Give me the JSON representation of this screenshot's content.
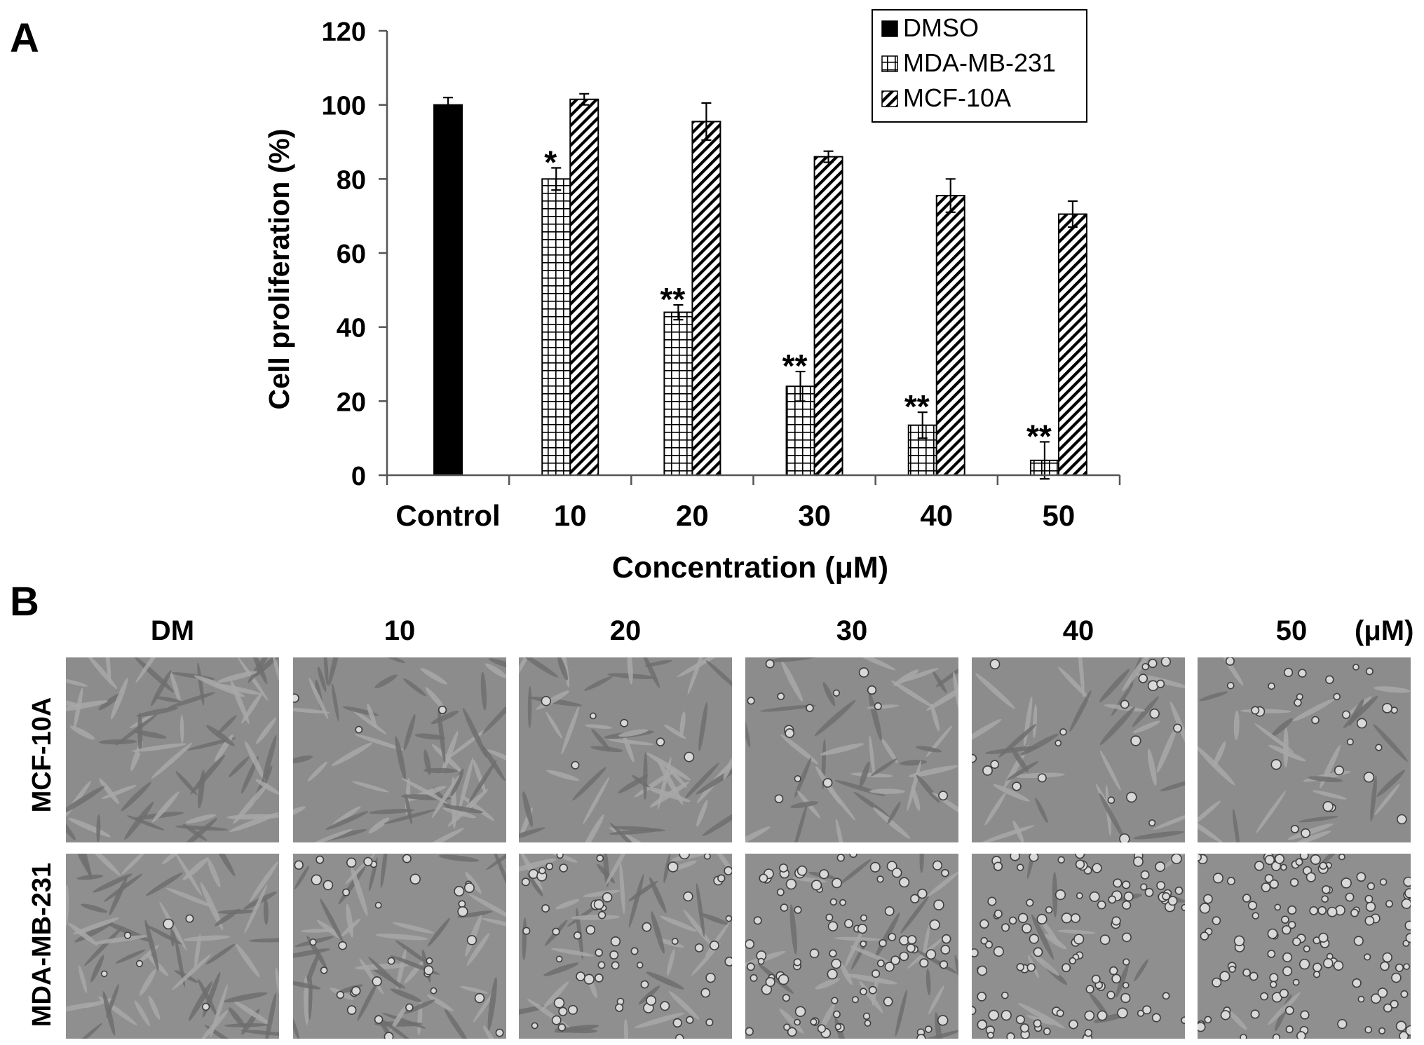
{
  "panel_a": {
    "letter": "A"
  },
  "panel_b": {
    "letter": "B",
    "columns": [
      "DM",
      "10",
      "20",
      "30",
      "40",
      "50"
    ],
    "unit": "(μM)",
    "rows": [
      "MCF-10A",
      "MDA-MB-231"
    ]
  },
  "chart_data": {
    "type": "bar",
    "title": "",
    "xlabel": "Concentration (μM)",
    "ylabel": "Cell proliferation (%)",
    "ylim": [
      0,
      120
    ],
    "yticks": [
      "0",
      "20",
      "40",
      "60",
      "80",
      "100",
      "120"
    ],
    "categories": [
      "Control",
      "10",
      "20",
      "30",
      "40",
      "50"
    ],
    "legend_position": "top-right",
    "series": [
      {
        "name": "DMSO",
        "pattern": "solid",
        "color": "#000000",
        "values": [
          100,
          null,
          null,
          null,
          null,
          null
        ],
        "errors": [
          2,
          null,
          null,
          null,
          null,
          null
        ]
      },
      {
        "name": "MDA-MB-231",
        "pattern": "grid",
        "color": "#000000",
        "values": [
          null,
          80,
          44,
          24,
          13.5,
          4
        ],
        "errors": [
          null,
          3,
          2,
          4,
          3.5,
          5
        ]
      },
      {
        "name": "MCF-10A",
        "pattern": "diagonal",
        "color": "#000000",
        "values": [
          null,
          101.5,
          95.5,
          86,
          75.5,
          70.5
        ],
        "errors": [
          null,
          1.5,
          5,
          1.5,
          4.5,
          3.5
        ]
      }
    ],
    "annotations": [
      {
        "category": "10",
        "series": "MDA-MB-231",
        "text": "*"
      },
      {
        "category": "20",
        "series": "MDA-MB-231",
        "text": "**"
      },
      {
        "category": "30",
        "series": "MDA-MB-231",
        "text": "**"
      },
      {
        "category": "40",
        "series": "MDA-MB-231",
        "text": "**"
      },
      {
        "category": "50",
        "series": "MDA-MB-231",
        "text": "**"
      }
    ]
  }
}
